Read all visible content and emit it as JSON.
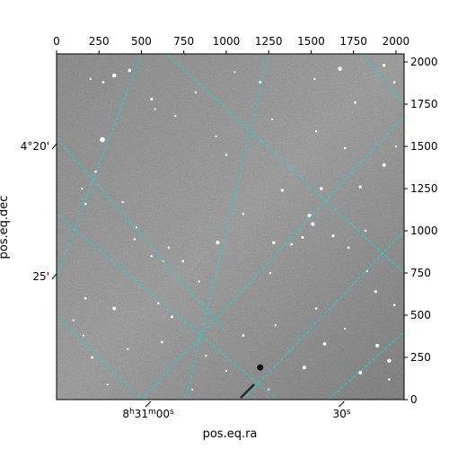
{
  "chart_data": {
    "type": "image",
    "title": "",
    "xlabel": "pos.eq.ra",
    "ylabel": "pos.eq.dec",
    "pixel_axes": {
      "x_range": [
        0,
        2048
      ],
      "y_range": [
        0,
        2048
      ],
      "top_ticks": [
        0,
        250,
        500,
        750,
        1000,
        1250,
        1500,
        1750,
        2000
      ],
      "right_ticks": [
        0,
        250,
        500,
        750,
        1000,
        1250,
        1500,
        1750,
        2000
      ]
    },
    "ra_tick_labels": [
      {
        "x": 540,
        "text": "8h31m00s"
      },
      {
        "x": 1680,
        "text": "30s"
      }
    ],
    "dec_tick_labels": [
      {
        "y": 1500,
        "text": "4°20'"
      },
      {
        "y": 730,
        "text": "25'"
      }
    ],
    "grid": {
      "color": "#00e0e0",
      "lines_rising": [
        {
          "from": [
            0,
            730
          ],
          "to": [
            500,
            2048
          ]
        },
        {
          "from": [
            760,
            0
          ],
          "to": [
            1250,
            2048
          ]
        },
        {
          "from": [
            500,
            0
          ],
          "to": [
            2048,
            1680
          ]
        },
        {
          "from": [
            1100,
            0
          ],
          "to": [
            2048,
            1000
          ]
        },
        {
          "from": [
            1600,
            0
          ],
          "to": [
            2048,
            400
          ]
        }
      ],
      "lines_falling": [
        {
          "from": [
            0,
            1550
          ],
          "to": [
            1000,
            400
          ]
        },
        {
          "from": [
            0,
            1100
          ],
          "to": [
            1300,
            0
          ]
        },
        {
          "from": [
            0,
            500
          ],
          "to": [
            500,
            0
          ]
        },
        {
          "from": [
            650,
            2048
          ],
          "to": [
            2048,
            750
          ]
        },
        {
          "from": [
            1800,
            2048
          ],
          "to": [
            2048,
            1750
          ]
        }
      ]
    },
    "image": {
      "background": "#767676",
      "stars": [
        [
          340,
          1920,
          2.2
        ],
        [
          430,
          1950,
          1.8
        ],
        [
          275,
          1880,
          1.4
        ],
        [
          560,
          1780,
          1.6
        ],
        [
          820,
          1820,
          1.2
        ],
        [
          1200,
          1880,
          1.5
        ],
        [
          1670,
          1960,
          2.2
        ],
        [
          1930,
          1980,
          1.6
        ],
        [
          1990,
          1880,
          1.3
        ],
        [
          1760,
          1760,
          1.4
        ],
        [
          1520,
          1900,
          1.2
        ],
        [
          1050,
          1940,
          1.1
        ],
        [
          270,
          1540,
          2.8
        ],
        [
          230,
          1350,
          1.3
        ],
        [
          200,
          1900,
          1.2
        ],
        [
          580,
          1720,
          1.1
        ],
        [
          700,
          1680,
          1.2
        ],
        [
          940,
          1560,
          1.1
        ],
        [
          1000,
          1450,
          1.2
        ],
        [
          1330,
          1240,
          1.7
        ],
        [
          1560,
          1250,
          1.8
        ],
        [
          1790,
          1260,
          1.6
        ],
        [
          1930,
          1390,
          2.0
        ],
        [
          1530,
          1590,
          1.2
        ],
        [
          1270,
          1660,
          1.1
        ],
        [
          1700,
          1490,
          1.3
        ],
        [
          2000,
          1500,
          1.2
        ],
        [
          1490,
          1090,
          2.2
        ],
        [
          1510,
          1040,
          2.0
        ],
        [
          1630,
          970,
          1.6
        ],
        [
          1450,
          960,
          1.5
        ],
        [
          1280,
          930,
          1.8
        ],
        [
          1385,
          920,
          1.4
        ],
        [
          1720,
          900,
          1.4
        ],
        [
          1820,
          1000,
          1.2
        ],
        [
          950,
          930,
          2.0
        ],
        [
          745,
          820,
          1.3
        ],
        [
          630,
          820,
          1.2
        ],
        [
          460,
          950,
          1.3
        ],
        [
          390,
          1170,
          1.2
        ],
        [
          170,
          1160,
          1.3
        ],
        [
          150,
          1250,
          1.1
        ],
        [
          840,
          700,
          1.2
        ],
        [
          1260,
          750,
          1.3
        ],
        [
          1880,
          640,
          1.6
        ],
        [
          1990,
          560,
          1.4
        ],
        [
          1830,
          760,
          1.1
        ],
        [
          470,
          1020,
          1.1
        ],
        [
          560,
          850,
          1.2
        ],
        [
          660,
          900,
          1.3
        ],
        [
          1100,
          1100,
          1.2
        ],
        [
          170,
          600,
          1.4
        ],
        [
          340,
          540,
          2.0
        ],
        [
          600,
          570,
          1.3
        ],
        [
          680,
          490,
          1.5
        ],
        [
          1530,
          540,
          1.3
        ],
        [
          1580,
          330,
          1.8
        ],
        [
          1890,
          320,
          2.0
        ],
        [
          1960,
          230,
          2.2
        ],
        [
          1790,
          160,
          2.0
        ],
        [
          1460,
          190,
          2.0
        ],
        [
          1100,
          380,
          1.3
        ],
        [
          620,
          340,
          1.4
        ],
        [
          210,
          250,
          1.4
        ],
        [
          420,
          300,
          1.2
        ],
        [
          160,
          380,
          1.1
        ],
        [
          100,
          470,
          1.2
        ],
        [
          880,
          260,
          1.2
        ],
        [
          1000,
          170,
          1.1
        ],
        [
          1700,
          420,
          1.1
        ],
        [
          1290,
          440,
          1.2
        ],
        [
          1960,
          120,
          1.3
        ],
        [
          800,
          60,
          1.1
        ],
        [
          300,
          90,
          1.1
        ],
        [
          1250,
          60,
          1.2
        ]
      ],
      "dark_spot": [
        1200,
        190,
        3.5
      ]
    }
  }
}
